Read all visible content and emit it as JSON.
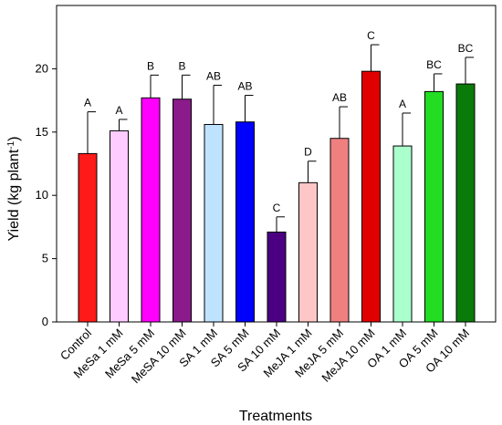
{
  "chart_data": {
    "type": "bar",
    "title": "",
    "xlabel": "Treatments",
    "ylabel": "Yield (kg plant",
    "ylabel_sup": "-1",
    "ylabel_close": ")",
    "ylim": [
      0,
      25
    ],
    "yticks": [
      0,
      5,
      10,
      15,
      20
    ],
    "grid": false,
    "categories": [
      "Control",
      "MeSa 1 mM",
      "MeSa 5 mM",
      "MeSA 10 mM",
      "SA 1 mM",
      "SA 5 mM",
      "SA 10 mM",
      "MeJA 1 mM",
      "MeJA 5 mM",
      "MeJA 10 mM",
      "OA 1 mM",
      "OA 5 mM",
      "OA 10 mM"
    ],
    "values": [
      13.3,
      15.1,
      17.7,
      17.6,
      15.6,
      15.8,
      7.1,
      11.0,
      14.5,
      19.8,
      13.9,
      18.2,
      18.8
    ],
    "errors": [
      3.3,
      0.9,
      1.8,
      1.9,
      3.1,
      2.1,
      1.2,
      1.7,
      2.5,
      2.1,
      2.6,
      1.4,
      2.1
    ],
    "significance": [
      "A",
      "A",
      "B",
      "B",
      "AB",
      "AB",
      "C",
      "D",
      "AB",
      "C",
      "A",
      "BC",
      "BC"
    ],
    "colors": [
      "#ff1a1a",
      "#ffccff",
      "#ff00ff",
      "#8b1a8b",
      "#bfe3ff",
      "#0000ff",
      "#4b0082",
      "#ffc6c6",
      "#f08080",
      "#e00000",
      "#aaffcc",
      "#22dd22",
      "#0a7a0a"
    ]
  }
}
